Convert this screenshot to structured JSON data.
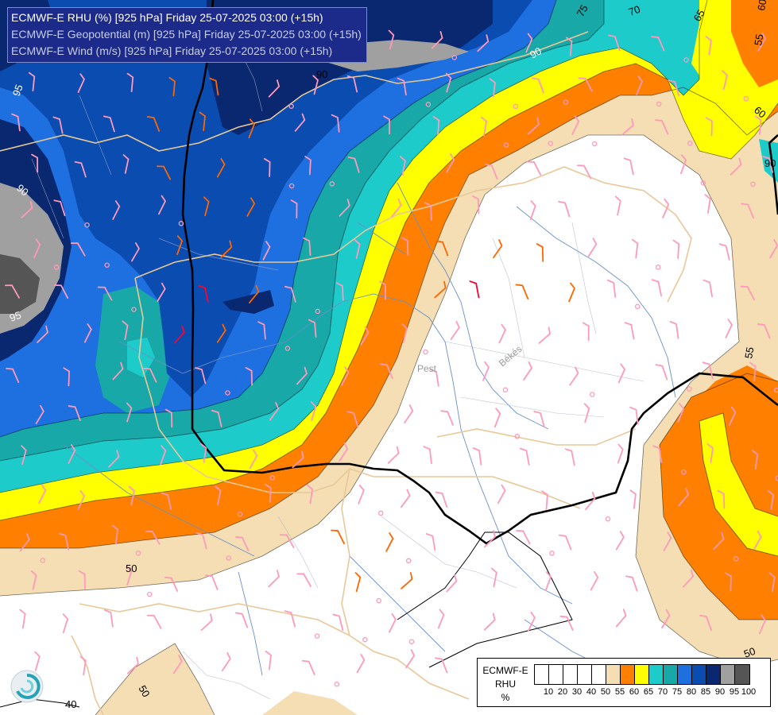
{
  "title_lines": [
    "ECMWF-E RHU (%) [925 hPa] Friday 25-07-2025 03:00 (+15h)",
    "ECMWF-E Geopotential (m) [925 hPa] Friday 25-07-2025 03:00 (+15h)",
    "ECMWF-E Wind (m/s) [925 hPa] Friday 25-07-2025 03:00 (+15h)"
  ],
  "legend": {
    "label": [
      "ECMWF-E",
      "RHU",
      "%"
    ],
    "ticks": [
      "10",
      "20",
      "30",
      "40",
      "50",
      "55",
      "60",
      "65",
      "70",
      "75",
      "80",
      "85",
      "90",
      "95",
      "100"
    ],
    "colors": [
      "#ffffff",
      "#ffffff",
      "#ffffff",
      "#ffffff",
      "#ffffff",
      "#f5deb3",
      "#ff8000",
      "#ffff00",
      "#1ecbcb",
      "#18a8a8",
      "#1e6fe0",
      "#0b4cb0",
      "#0a2870",
      "#a0a0a0",
      "#555555"
    ]
  },
  "contour_labels": {
    "rhu": [
      "95",
      "90",
      "75",
      "70",
      "65",
      "55",
      "60",
      "55",
      "90",
      "90",
      "95",
      "50",
      "50",
      "40",
      "50",
      "60"
    ],
    "geo": [
      "90"
    ]
  },
  "place_labels": [
    "Pest",
    "Békés"
  ],
  "colors": {
    "wind_barb_low": "#ff99bb",
    "wind_barb_mid": "#ff6600",
    "wind_barb_high": "#ff0033",
    "border": "#e8c898",
    "river": "#6b8fc7",
    "geopotential": "#000000"
  }
}
